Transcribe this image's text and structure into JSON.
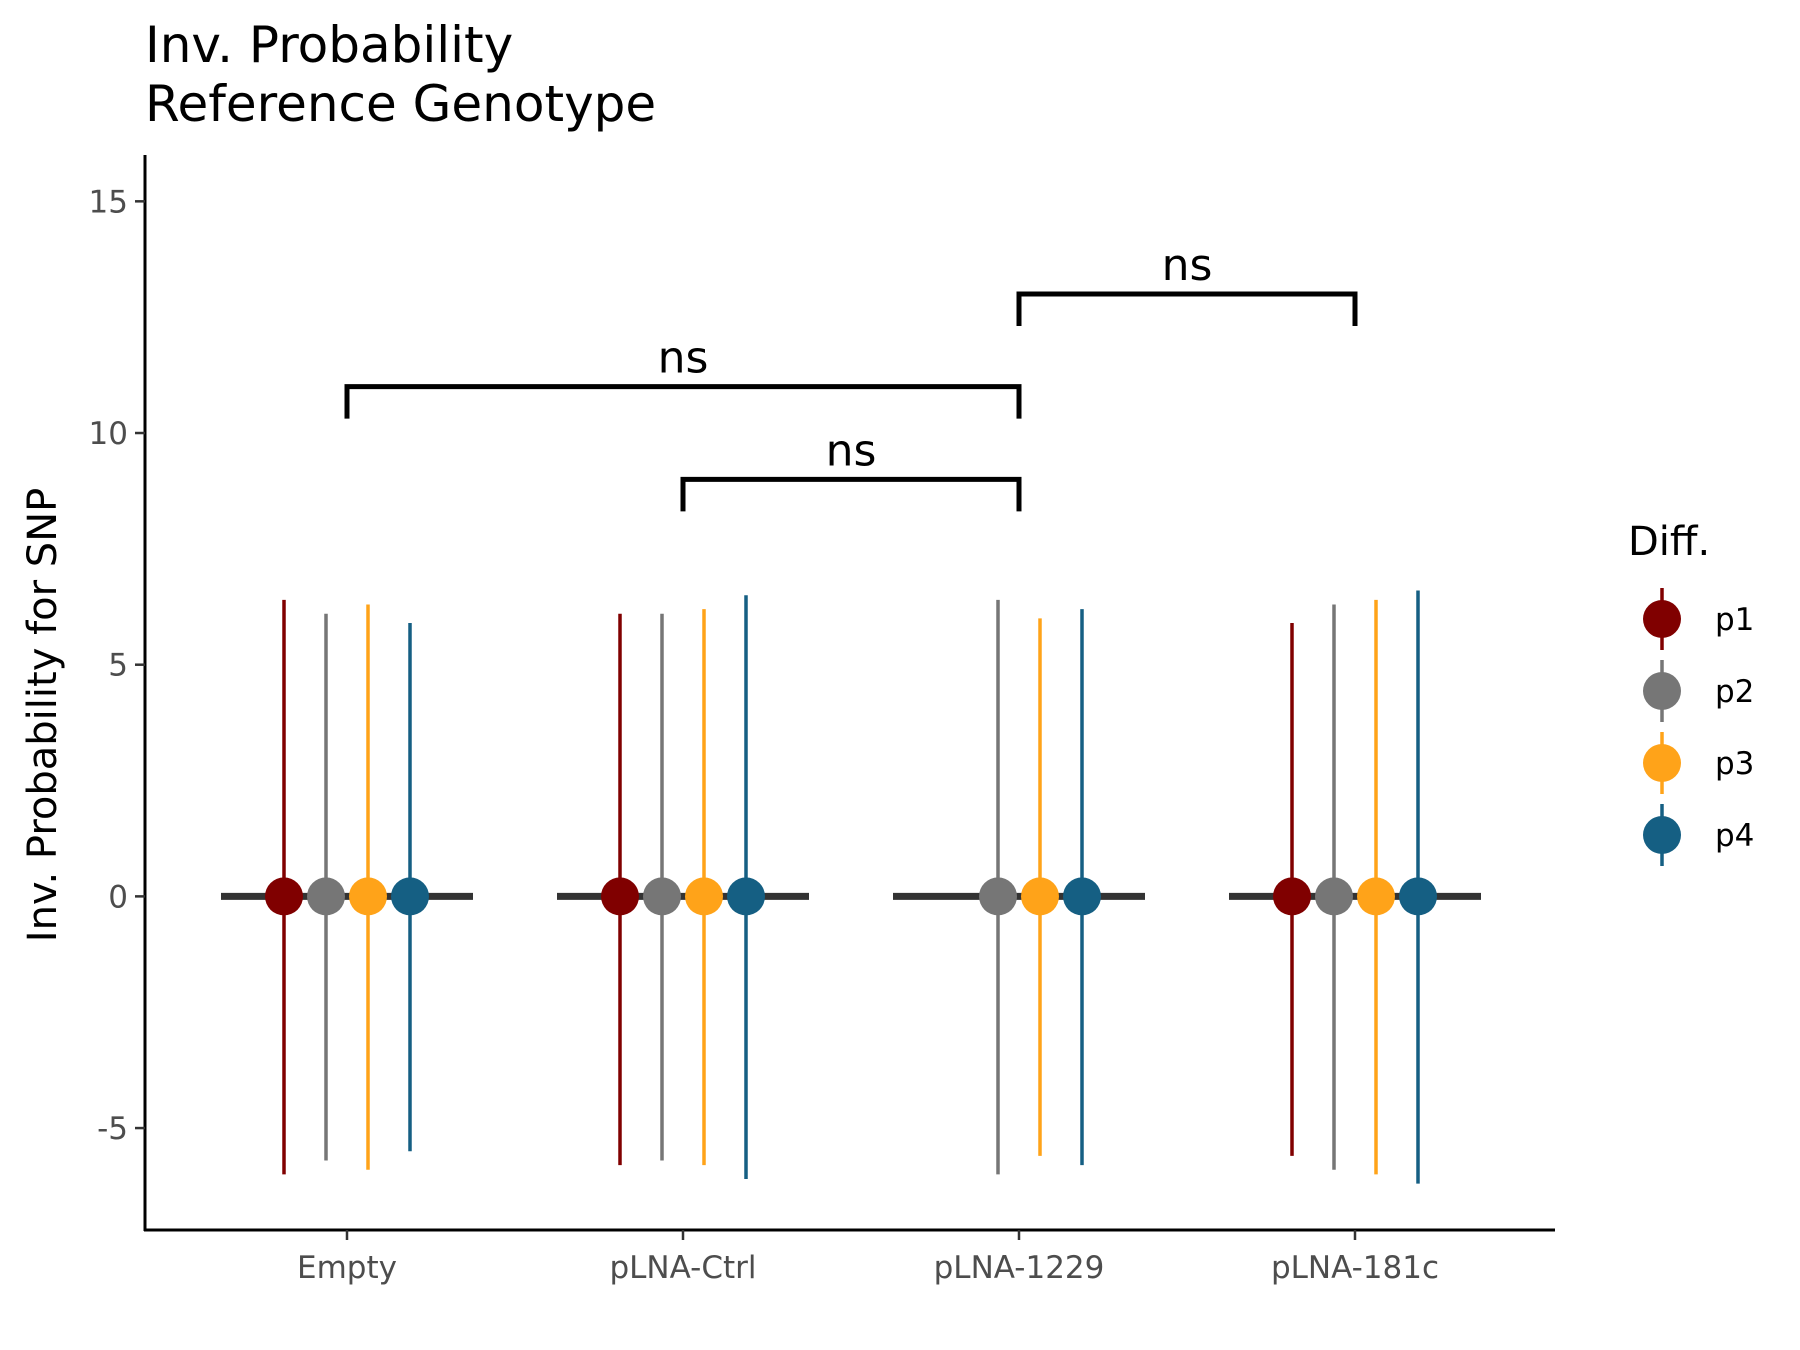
{
  "chart_data": {
    "type": "scatter",
    "title": [
      "Inv. Probability",
      "Reference Genotype"
    ],
    "xlabel": "",
    "ylabel": "Inv. Probability for SNP",
    "categories": [
      "Empty",
      "pLNA-Ctrl",
      "pLNA-1229",
      "pLNA-181c"
    ],
    "ylim": [
      -7.2,
      16
    ],
    "yticks": [
      -5,
      0,
      5,
      10,
      15
    ],
    "ytick_labels": [
      "-5",
      "0",
      "5",
      "10",
      "15"
    ],
    "grid": false,
    "legend": {
      "title": "Diff.",
      "position": "right"
    },
    "median_line": {
      "value": 0,
      "color": "#333333"
    },
    "series": [
      {
        "name": "p1",
        "color": "#800000",
        "points": [
          {
            "category": "Empty",
            "y": 0,
            "low": -6.0,
            "high": 6.4
          },
          {
            "category": "pLNA-Ctrl",
            "y": 0,
            "low": -5.8,
            "high": 6.1
          },
          {
            "category": "pLNA-181c",
            "y": 0,
            "low": -5.6,
            "high": 5.9
          }
        ]
      },
      {
        "name": "p2",
        "color": "#767676",
        "points": [
          {
            "category": "Empty",
            "y": 0,
            "low": -5.7,
            "high": 6.1
          },
          {
            "category": "pLNA-Ctrl",
            "y": 0,
            "low": -5.7,
            "high": 6.1
          },
          {
            "category": "pLNA-1229",
            "y": 0,
            "low": -6.0,
            "high": 6.4
          },
          {
            "category": "pLNA-181c",
            "y": 0,
            "low": -5.9,
            "high": 6.3
          }
        ]
      },
      {
        "name": "p3",
        "color": "#FFA319",
        "points": [
          {
            "category": "Empty",
            "y": 0,
            "low": -5.9,
            "high": 6.3
          },
          {
            "category": "pLNA-Ctrl",
            "y": 0,
            "low": -5.8,
            "high": 6.2
          },
          {
            "category": "pLNA-1229",
            "y": 0,
            "low": -5.6,
            "high": 6.0
          },
          {
            "category": "pLNA-181c",
            "y": 0,
            "low": -6.0,
            "high": 6.4
          }
        ]
      },
      {
        "name": "p4",
        "color": "#155F83",
        "points": [
          {
            "category": "Empty",
            "y": 0,
            "low": -5.5,
            "high": 5.9
          },
          {
            "category": "pLNA-Ctrl",
            "y": 0,
            "low": -6.1,
            "high": 6.5
          },
          {
            "category": "pLNA-1229",
            "y": 0,
            "low": -5.8,
            "high": 6.2
          },
          {
            "category": "pLNA-181c",
            "y": 0,
            "low": -6.2,
            "high": 6.6
          }
        ]
      }
    ],
    "significance": [
      {
        "from": "Empty",
        "to": "pLNA-1229",
        "y": 11,
        "label": "ns"
      },
      {
        "from": "pLNA-Ctrl",
        "to": "pLNA-1229",
        "y": 9,
        "label": "ns"
      },
      {
        "from": "pLNA-1229",
        "to": "pLNA-181c",
        "y": 13,
        "label": "ns"
      }
    ]
  }
}
